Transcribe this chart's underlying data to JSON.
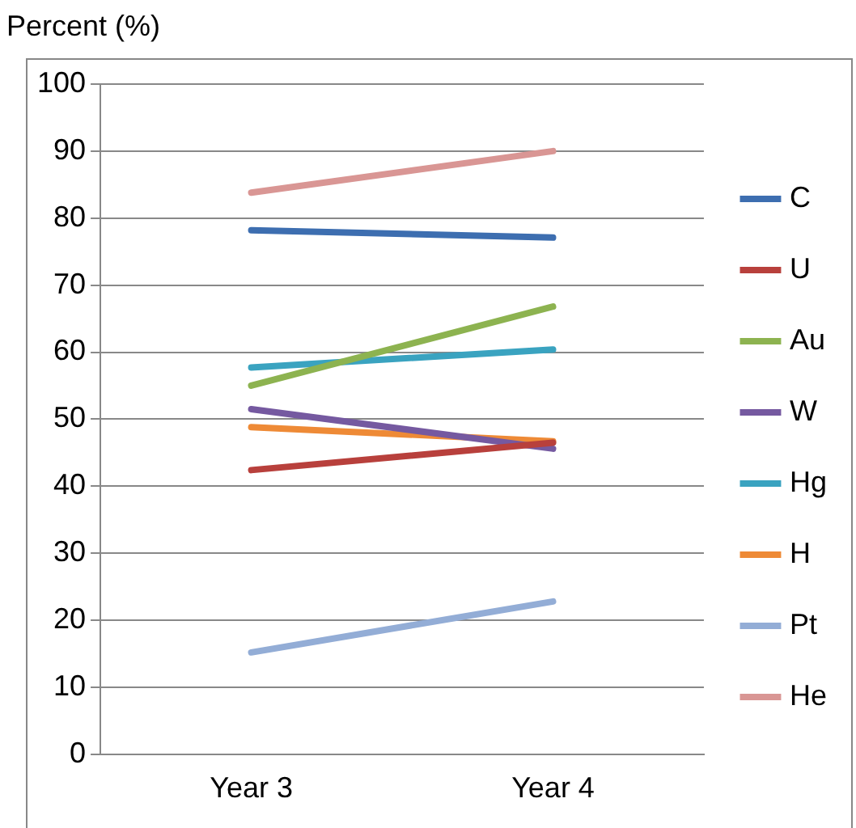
{
  "chart_data": {
    "type": "line",
    "ylabel": "Percent (%)",
    "categories": [
      "Year 3",
      "Year 4"
    ],
    "series": [
      {
        "name": "C",
        "color": "#3d6eb0",
        "values": [
          78.2,
          77.1
        ]
      },
      {
        "name": "U",
        "color": "#b8403c",
        "values": [
          42.4,
          46.5
        ]
      },
      {
        "name": "Au",
        "color": "#8db350",
        "values": [
          55,
          66.8
        ]
      },
      {
        "name": "W",
        "color": "#7559a0",
        "values": [
          51.5,
          45.6
        ]
      },
      {
        "name": "Hg",
        "color": "#3aa3c0",
        "values": [
          57.7,
          60.4
        ]
      },
      {
        "name": "H",
        "color": "#ee8a36",
        "values": [
          48.8,
          46.7
        ]
      },
      {
        "name": "Pt",
        "color": "#93add6",
        "values": [
          15.2,
          22.8
        ]
      },
      {
        "name": "He",
        "color": "#d99694",
        "values": [
          83.8,
          90
        ]
      }
    ],
    "ylim": [
      0,
      100
    ],
    "yticks": [
      0,
      10,
      20,
      30,
      40,
      50,
      60,
      70,
      80,
      90,
      100
    ],
    "grid": "y",
    "legend": "right",
    "marker": "none",
    "line_style": "solid"
  }
}
